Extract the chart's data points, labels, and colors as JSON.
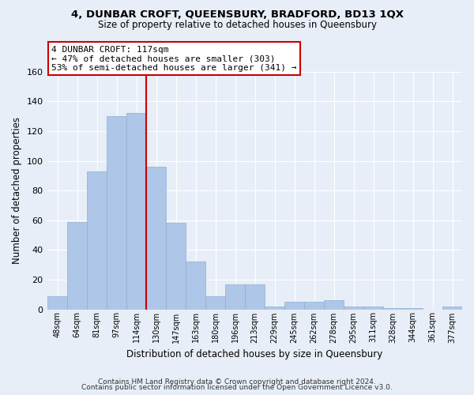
{
  "title": "4, DUNBAR CROFT, QUEENSBURY, BRADFORD, BD13 1QX",
  "subtitle": "Size of property relative to detached houses in Queensbury",
  "xlabel": "Distribution of detached houses by size in Queensbury",
  "ylabel": "Number of detached properties",
  "footer_line1": "Contains HM Land Registry data © Crown copyright and database right 2024.",
  "footer_line2": "Contains public sector information licensed under the Open Government Licence v3.0.",
  "categories": [
    "48sqm",
    "64sqm",
    "81sqm",
    "97sqm",
    "114sqm",
    "130sqm",
    "147sqm",
    "163sqm",
    "180sqm",
    "196sqm",
    "213sqm",
    "229sqm",
    "245sqm",
    "262sqm",
    "278sqm",
    "295sqm",
    "311sqm",
    "328sqm",
    "344sqm",
    "361sqm",
    "377sqm"
  ],
  "values": [
    9,
    59,
    93,
    130,
    132,
    96,
    58,
    32,
    9,
    17,
    17,
    2,
    5,
    5,
    6,
    2,
    2,
    1,
    1,
    0,
    2
  ],
  "bar_color": "#aec6e8",
  "bar_edge_color": "#8ab0d0",
  "marker_color": "#cc0000",
  "annotation_line1": "4 DUNBAR CROFT: 117sqm",
  "annotation_line2": "← 47% of detached houses are smaller (303)",
  "annotation_line3": "53% of semi-detached houses are larger (341) →",
  "annotation_box_color": "#ffffff",
  "annotation_box_edge": "#cc0000",
  "background_color": "#e8eef7",
  "plot_bg_color": "#e8eef7",
  "grid_color": "#ffffff",
  "ylim": [
    0,
    160
  ],
  "yticks": [
    0,
    20,
    40,
    60,
    80,
    100,
    120,
    140,
    160
  ]
}
